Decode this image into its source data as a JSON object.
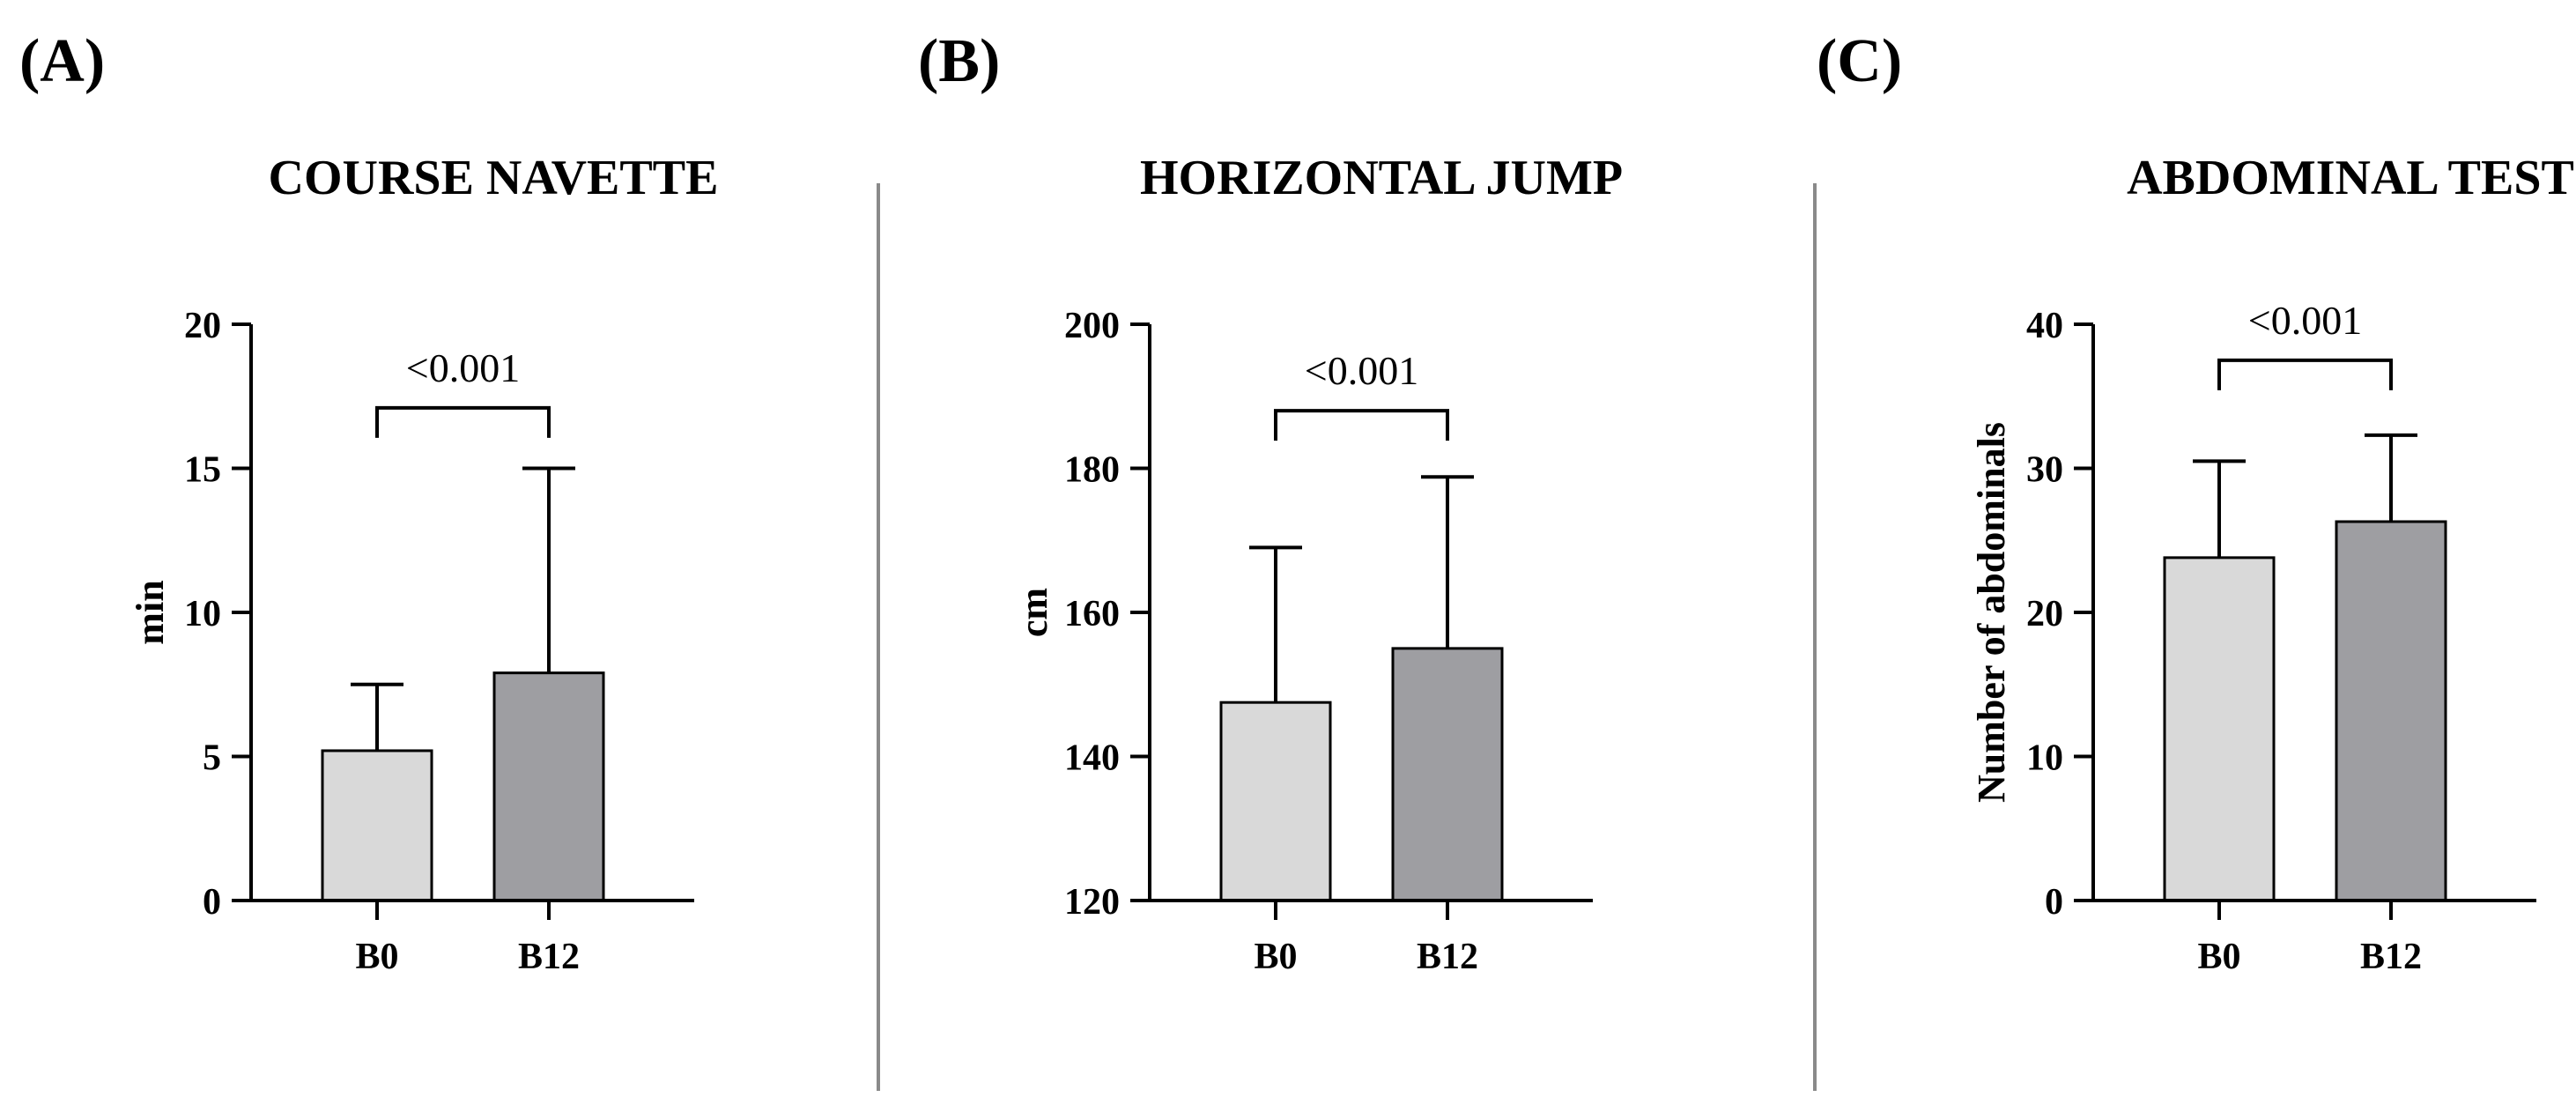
{
  "chart_data": [
    {
      "panel_label": "(A)",
      "type": "bar",
      "title": "COURSE NAVETTE",
      "xlabel": "",
      "ylabel": "min",
      "ylim": [
        0,
        20
      ],
      "yticks": [
        0,
        5,
        10,
        15,
        20
      ],
      "categories": [
        "B0",
        "B12"
      ],
      "values": [
        5.2,
        7.9
      ],
      "error_plus": [
        2.3,
        7.1
      ],
      "bar_colors": [
        "#d9d9d9",
        "#9e9ea2"
      ],
      "significance": {
        "label": "<0.001",
        "from": "B0",
        "to": "B12",
        "y": 17.1
      }
    },
    {
      "panel_label": "(B)",
      "type": "bar",
      "title": "HORIZONTAL JUMP",
      "xlabel": "",
      "ylabel": "cm",
      "ylim": [
        120,
        200
      ],
      "yticks": [
        120,
        140,
        160,
        180,
        200
      ],
      "categories": [
        "B0",
        "B12"
      ],
      "values": [
        147.5,
        155.0
      ],
      "error_plus": [
        21.5,
        23.8
      ],
      "bar_colors": [
        "#d9d9d9",
        "#9e9ea2"
      ],
      "significance": {
        "label": "<0.001",
        "from": "B0",
        "to": "B12",
        "y": 188.0
      }
    },
    {
      "panel_label": "(C)",
      "type": "bar",
      "title": "ABDOMINAL TEST",
      "xlabel": "",
      "ylabel": "Number of abdominals",
      "ylim": [
        0,
        40
      ],
      "yticks": [
        0,
        10,
        20,
        30,
        40
      ],
      "categories": [
        "B0",
        "B12"
      ],
      "values": [
        23.8,
        26.3
      ],
      "error_plus": [
        6.7,
        6.0
      ],
      "bar_colors": [
        "#d9d9d9",
        "#9e9ea2"
      ],
      "significance": {
        "label": "<0.001",
        "from": "B0",
        "to": "B12",
        "y": 37.5
      }
    }
  ]
}
